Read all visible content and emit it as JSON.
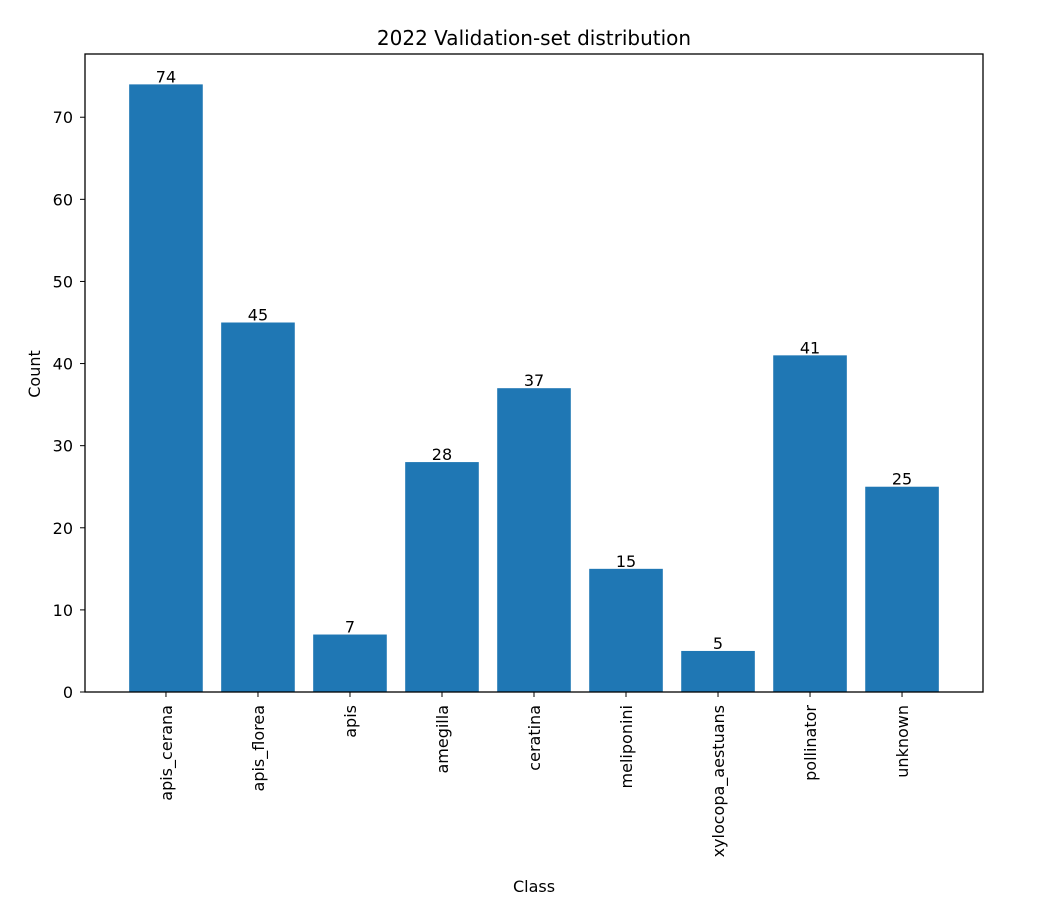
{
  "chart_data": {
    "type": "bar",
    "title": "2022 Validation-set distribution",
    "xlabel": "Class",
    "ylabel": "Count",
    "categories": [
      "apis_cerana",
      "apis_florea",
      "apis",
      "amegilla",
      "ceratina",
      "meliponini",
      "xylocopa_aestuans",
      "pollinator",
      "unknown"
    ],
    "values": [
      74,
      45,
      7,
      28,
      37,
      15,
      5,
      41,
      25
    ],
    "data_labels": [
      "74",
      "45",
      "7",
      "28",
      "37",
      "15",
      "5",
      "41",
      "25"
    ],
    "ylim": [
      0,
      77.7
    ],
    "yticks": [
      0,
      10,
      20,
      30,
      40,
      50,
      60,
      70
    ],
    "ytick_labels": [
      "0",
      "10",
      "20",
      "30",
      "40",
      "50",
      "60",
      "70"
    ],
    "bar_color": "#1f77b4",
    "grid": false,
    "legend": "none",
    "x_tick_rotation": "vertical"
  }
}
